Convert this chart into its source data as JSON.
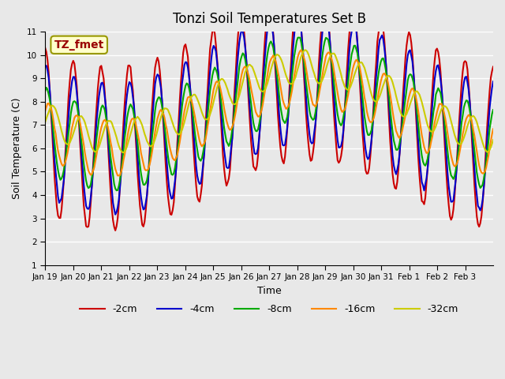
{
  "title": "Tonzi Soil Temperatures Set B",
  "xlabel": "Time",
  "ylabel": "Soil Temperature (C)",
  "annotation_text": "TZ_fmet",
  "annotation_bg": "#ffffcc",
  "annotation_border": "#999900",
  "annotation_text_color": "#990000",
  "ylim": [
    1.0,
    11.0
  ],
  "yticks": [
    1.0,
    2.0,
    3.0,
    4.0,
    5.0,
    6.0,
    7.0,
    8.0,
    9.0,
    10.0,
    11.0
  ],
  "x_labels": [
    "Jan 19",
    "Jan 20",
    "Jan 21",
    "Jan 22",
    "Jan 23",
    "Jan 24",
    "Jan 25",
    "Jan 26",
    "Jan 27",
    "Jan 28",
    "Jan 29",
    "Jan 30",
    "Jan 31",
    "Feb 1",
    "Feb 2",
    "Feb 3"
  ],
  "bg_color": "#e8e8e8",
  "plot_bg_color": "#e8e8e8",
  "grid_color": "#ffffff",
  "line_colors": {
    "-2cm": "#cc0000",
    "-4cm": "#0000cc",
    "-8cm": "#00aa00",
    "-16cm": "#ff8800",
    "-32cm": "#cccc00"
  },
  "line_width": 1.5
}
